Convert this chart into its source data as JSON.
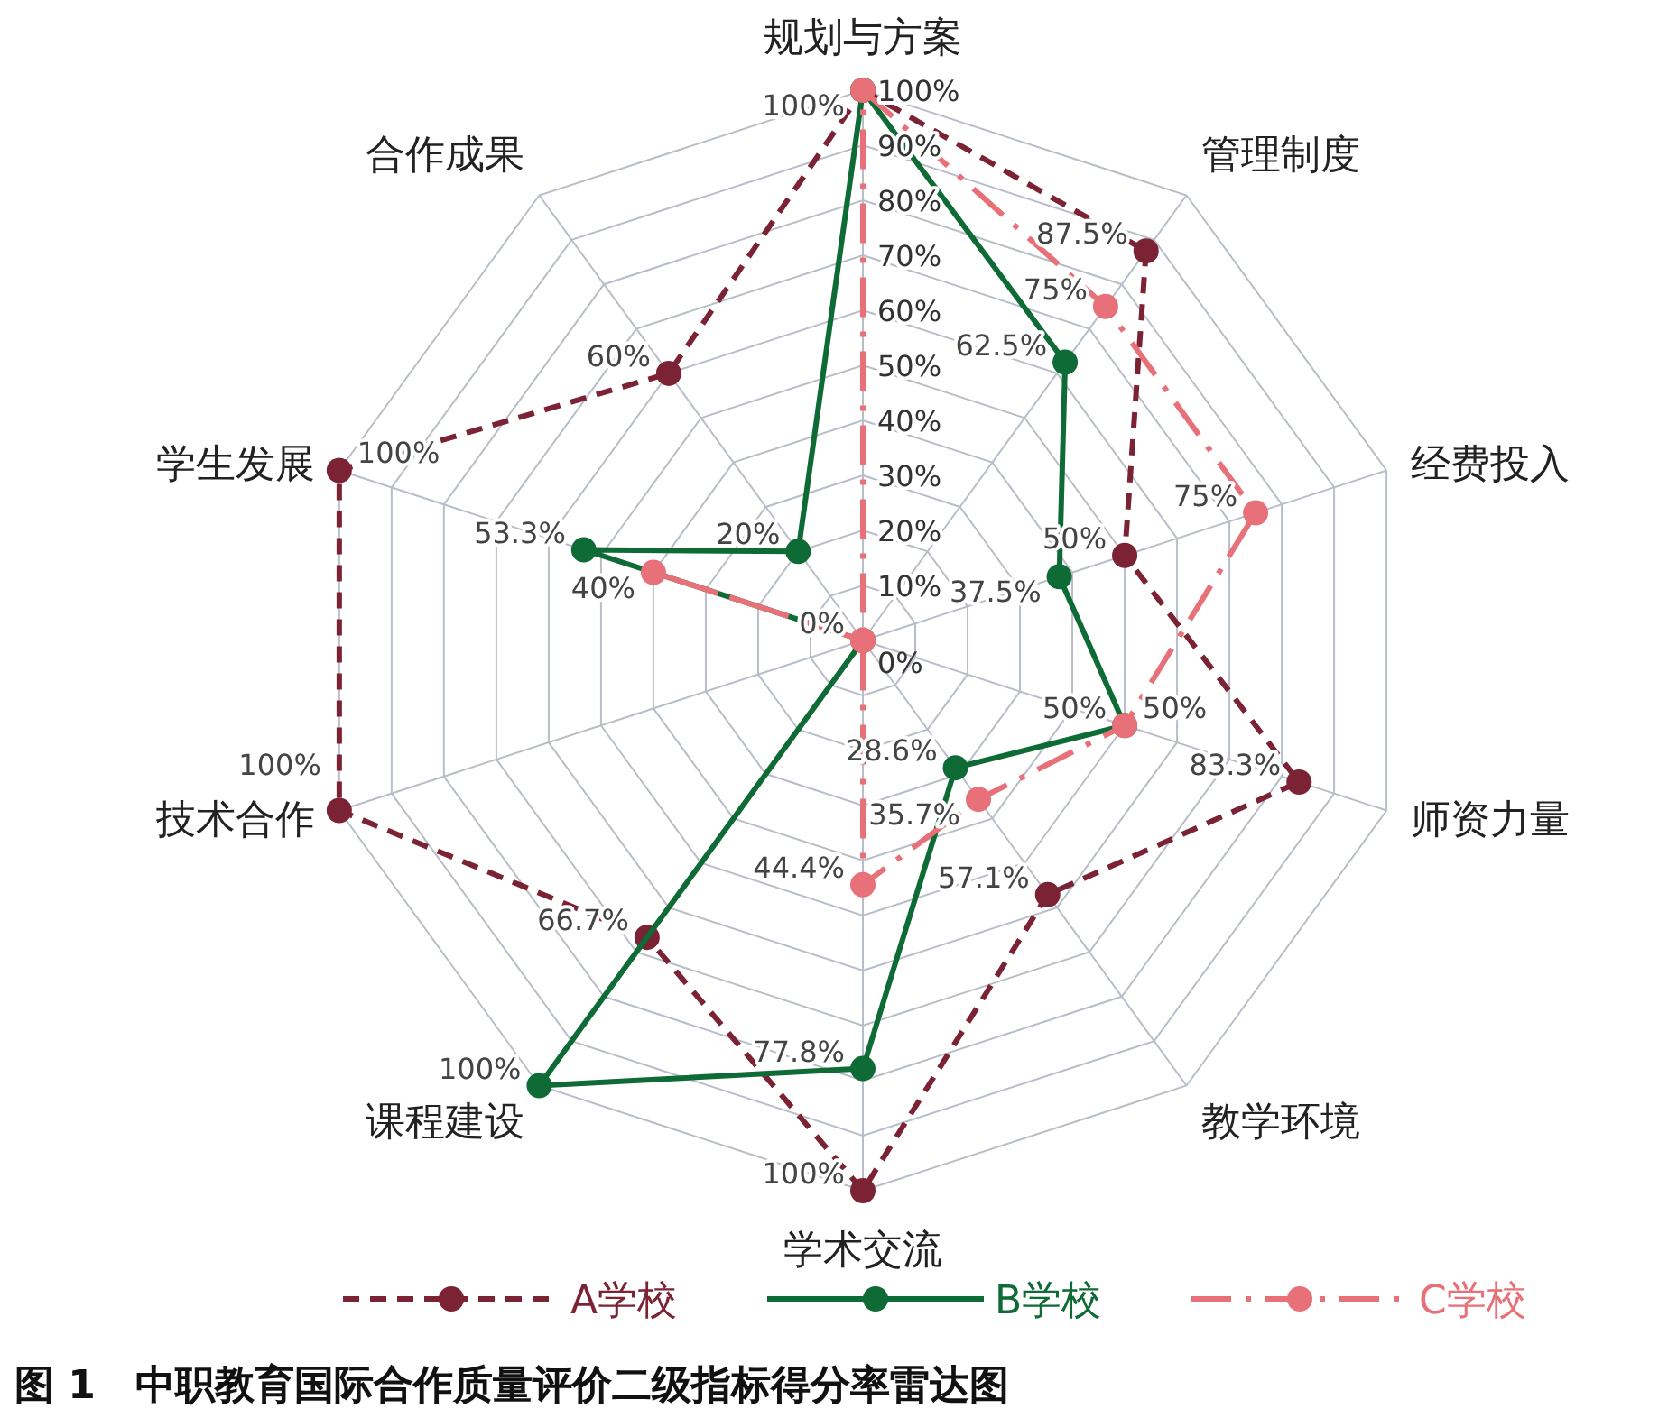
{
  "chart_data": {
    "type": "radar",
    "title": "图 1　中职教育国际合作质量评价二级指标得分率雷达图",
    "categories": [
      "规划与方案",
      "管理制度",
      "经费投入",
      "师资力量",
      "教学环境",
      "学术交流",
      "课程建设",
      "技术合作",
      "学生发展",
      "合作成果"
    ],
    "ylim": [
      0,
      100
    ],
    "yticks": [
      {
        "value": 0,
        "label": "0%"
      },
      {
        "value": 10,
        "label": "10%"
      },
      {
        "value": 20,
        "label": "20%"
      },
      {
        "value": 30,
        "label": "30%"
      },
      {
        "value": 40,
        "label": "40%"
      },
      {
        "value": 50,
        "label": "50%"
      },
      {
        "value": 60,
        "label": "60%"
      },
      {
        "value": 70,
        "label": "70%"
      },
      {
        "value": 80,
        "label": "80%"
      },
      {
        "value": 90,
        "label": "90%"
      },
      {
        "value": 100,
        "label": "100%"
      }
    ],
    "grid": true,
    "legend": "bottom",
    "marker": "circle",
    "series": [
      {
        "name": "A学校",
        "color": "#7b2335",
        "line_style": "dashed",
        "values": [
          100,
          87.5,
          50,
          83.3,
          57.1,
          100,
          66.7,
          100,
          100,
          60
        ],
        "value_labels": [
          "100%",
          "87.5%",
          "50%",
          "83.3%",
          "57.1%",
          "100%",
          "66.7%",
          "100%",
          "100%",
          "60%"
        ]
      },
      {
        "name": "B学校",
        "color": "#0e6b35",
        "line_style": "solid",
        "values": [
          100,
          62.5,
          37.5,
          50,
          28.6,
          77.8,
          100,
          0,
          53.3,
          20
        ],
        "value_labels": [
          null,
          "62.5%",
          "37.5%",
          "50%",
          "28.6%",
          "77.8%",
          "100%",
          null,
          "53.3%",
          "20%"
        ]
      },
      {
        "name": "C学校",
        "color": "#e87078",
        "line_style": "dashdot",
        "values": [
          100,
          75,
          75,
          50,
          35.7,
          44.4,
          0,
          0,
          40,
          0
        ],
        "value_labels": [
          null,
          "75%",
          "75%",
          "50%",
          "35.7%",
          "44.4%",
          null,
          "0%",
          "40%",
          null
        ]
      }
    ]
  }
}
